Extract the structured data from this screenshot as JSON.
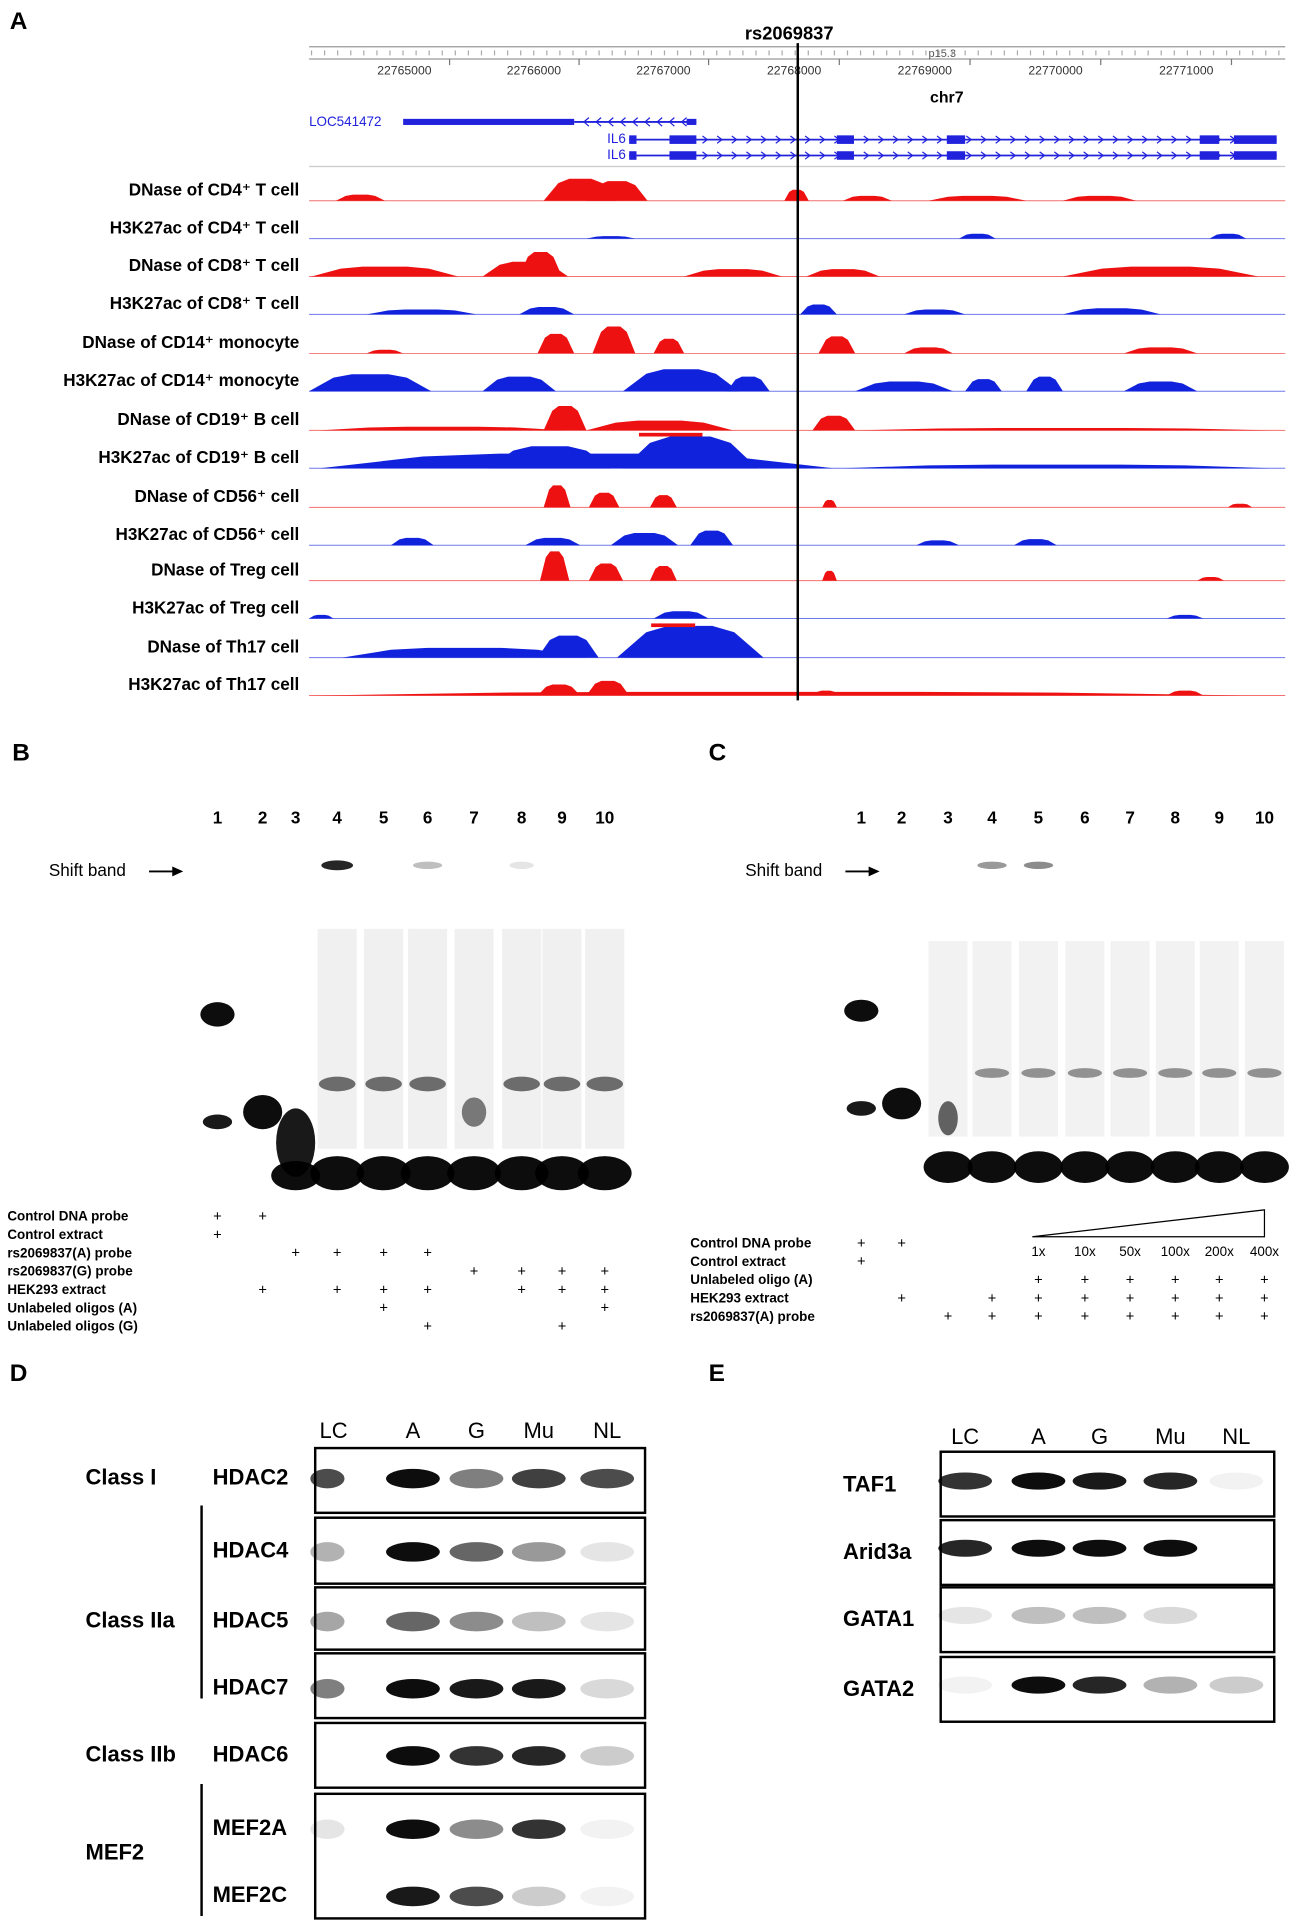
{
  "panel_a": {
    "letter": "A",
    "snp": "rs2069837",
    "band": "p15.3",
    "chromosome": "chr7",
    "ruler_ticks": [
      22765000,
      22766000,
      22767000,
      22768000,
      22769000,
      22770000,
      22771000
    ],
    "genes": [
      "LOC541472",
      "IL6",
      "IL6"
    ],
    "gene_color": "#2222dd",
    "tracks": [
      {
        "label": "DNase of CD4⁺ T cell",
        "color": "#ee1111"
      },
      {
        "label": "H3K27ac of CD4⁺ T cell",
        "color": "#1122dd"
      },
      {
        "label": "DNase of CD8⁺ T cell",
        "color": "#ee1111"
      },
      {
        "label": "H3K27ac of CD8⁺ T cell",
        "color": "#1122dd"
      },
      {
        "label": "DNase of CD14⁺ monocyte",
        "color": "#ee1111"
      },
      {
        "label": "H3K27ac of CD14⁺ monocyte",
        "color": "#1122dd"
      },
      {
        "label": "DNase of CD19⁺ B cell",
        "color": "#ee1111"
      },
      {
        "label": "H3K27ac of CD19⁺ B cell",
        "color": "#1122dd"
      },
      {
        "label": "DNase of CD56⁺ cell",
        "color": "#ee1111"
      },
      {
        "label": "H3K27ac of CD56⁺ cell",
        "color": "#1122dd"
      },
      {
        "label": "DNase of Treg cell",
        "color": "#ee1111"
      },
      {
        "label": "H3K27ac of Treg cell",
        "color": "#1122dd"
      },
      {
        "label": "DNase of Th17 cell",
        "color": "#1122dd"
      },
      {
        "label": "H3K27ac of Th17 cell",
        "color": "#ee1111"
      }
    ]
  },
  "panel_b": {
    "letter": "B",
    "lanes": [
      "1",
      "2",
      "3",
      "4",
      "5",
      "6",
      "7",
      "8",
      "9",
      "10"
    ],
    "shift_label": "Shift band",
    "conditions": [
      {
        "label": "Control DNA probe",
        "marks": [
          "+",
          "+",
          null,
          null,
          null,
          null,
          null,
          null,
          null,
          null
        ]
      },
      {
        "label": "Control extract",
        "marks": [
          "+",
          null,
          null,
          null,
          null,
          null,
          null,
          null,
          null,
          null
        ]
      },
      {
        "label": "rs2069837(A) probe",
        "marks": [
          null,
          null,
          "+",
          "+",
          "+",
          "+",
          null,
          null,
          null,
          null
        ]
      },
      {
        "label": "rs2069837(G) probe",
        "marks": [
          null,
          null,
          null,
          null,
          null,
          null,
          "+",
          "+",
          "+",
          "+"
        ]
      },
      {
        "label": "HEK293 extract",
        "marks": [
          null,
          "+",
          null,
          "+",
          "+",
          "+",
          null,
          "+",
          "+",
          "+"
        ]
      },
      {
        "label": "Unlabeled oligos (A)",
        "marks": [
          null,
          null,
          null,
          null,
          "+",
          null,
          null,
          null,
          null,
          "+"
        ]
      },
      {
        "label": "Unlabeled oligos (G)",
        "marks": [
          null,
          null,
          null,
          null,
          null,
          "+",
          null,
          null,
          "+",
          null
        ]
      }
    ]
  },
  "panel_c": {
    "letter": "C",
    "lanes": [
      "1",
      "2",
      "3",
      "4",
      "5",
      "6",
      "7",
      "8",
      "9",
      "10"
    ],
    "shift_label": "Shift band",
    "concentrations": [
      null,
      null,
      null,
      null,
      "1x",
      "10x",
      "50x",
      "100x",
      "200x",
      "400x"
    ],
    "conditions": [
      {
        "label": "Control DNA probe",
        "marks": [
          "+",
          "+",
          null,
          null,
          null,
          null,
          null,
          null,
          null,
          null
        ]
      },
      {
        "label": "Control extract",
        "marks": [
          "+",
          null,
          null,
          null,
          null,
          null,
          null,
          null,
          null,
          null
        ]
      },
      {
        "label": "Unlabeled oligo (A)",
        "marks": [
          null,
          null,
          null,
          null,
          "+",
          "+",
          "+",
          "+",
          "+",
          "+"
        ]
      },
      {
        "label": "HEK293 extract",
        "marks": [
          null,
          "+",
          null,
          "+",
          "+",
          "+",
          "+",
          "+",
          "+",
          "+"
        ]
      },
      {
        "label": "rs2069837(A) probe",
        "marks": [
          null,
          null,
          "+",
          "+",
          "+",
          "+",
          "+",
          "+",
          "+",
          "+"
        ]
      }
    ]
  },
  "panel_d": {
    "letter": "D",
    "columns": [
      "LC",
      "A",
      "G",
      "Mu",
      "NL"
    ],
    "groups": [
      {
        "label": "Class I",
        "proteins": [
          "HDAC2"
        ]
      },
      {
        "label": "Class IIa",
        "proteins": [
          "HDAC4",
          "HDAC5",
          "HDAC7"
        ]
      },
      {
        "label": "Class IIb",
        "proteins": [
          "HDAC6"
        ]
      },
      {
        "label": "MEF2",
        "proteins": [
          "MEF2A",
          "MEF2C"
        ]
      }
    ]
  },
  "panel_e": {
    "letter": "E",
    "columns": [
      "LC",
      "A",
      "G",
      "Mu",
      "NL"
    ],
    "proteins": [
      "TAF1",
      "Arid3a",
      "GATA1",
      "GATA2"
    ]
  }
}
